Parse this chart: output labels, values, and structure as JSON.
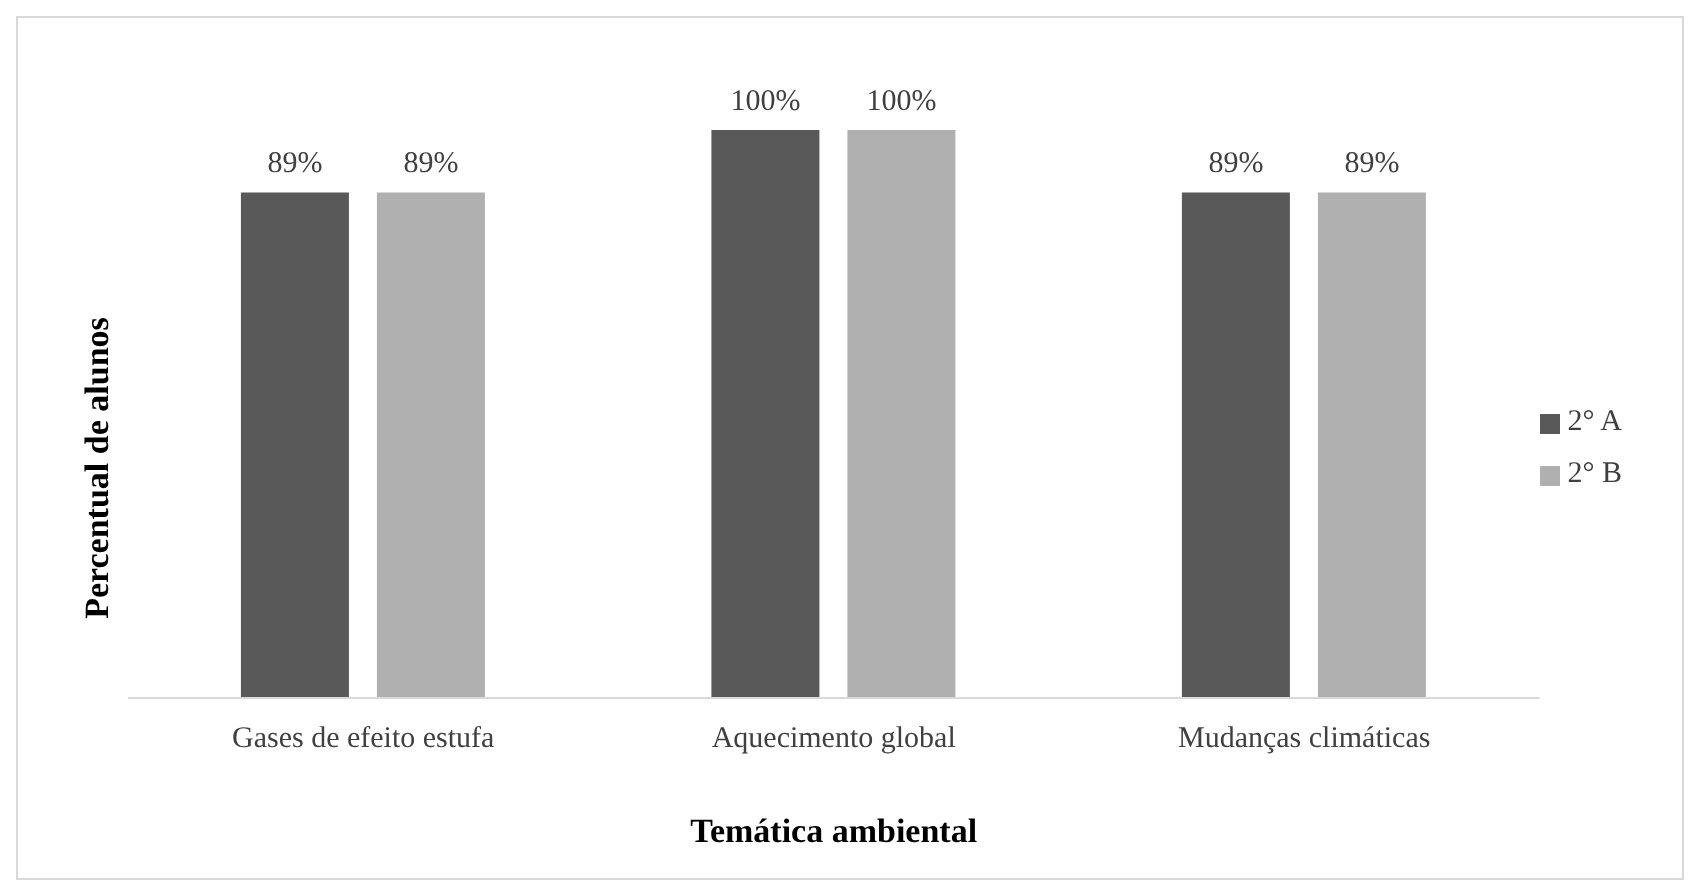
{
  "chart_data": {
    "type": "bar",
    "xlabel": "Temática ambiental",
    "ylabel": "Percentual de alunos",
    "categories": [
      "Gases de efeito estufa",
      "Aquecimento global",
      "Mudanças climáticas"
    ],
    "series": [
      {
        "name": "2° A",
        "color": "#595959",
        "values": [
          89,
          100,
          89
        ],
        "value_labels": [
          "89%",
          "100%",
          "89%"
        ]
      },
      {
        "name": "2° B",
        "color": "#b0b0b0",
        "values": [
          89,
          100,
          89
        ],
        "value_labels": [
          "89%",
          "100%",
          "89%"
        ]
      }
    ],
    "legend": "right",
    "grid": false
  }
}
